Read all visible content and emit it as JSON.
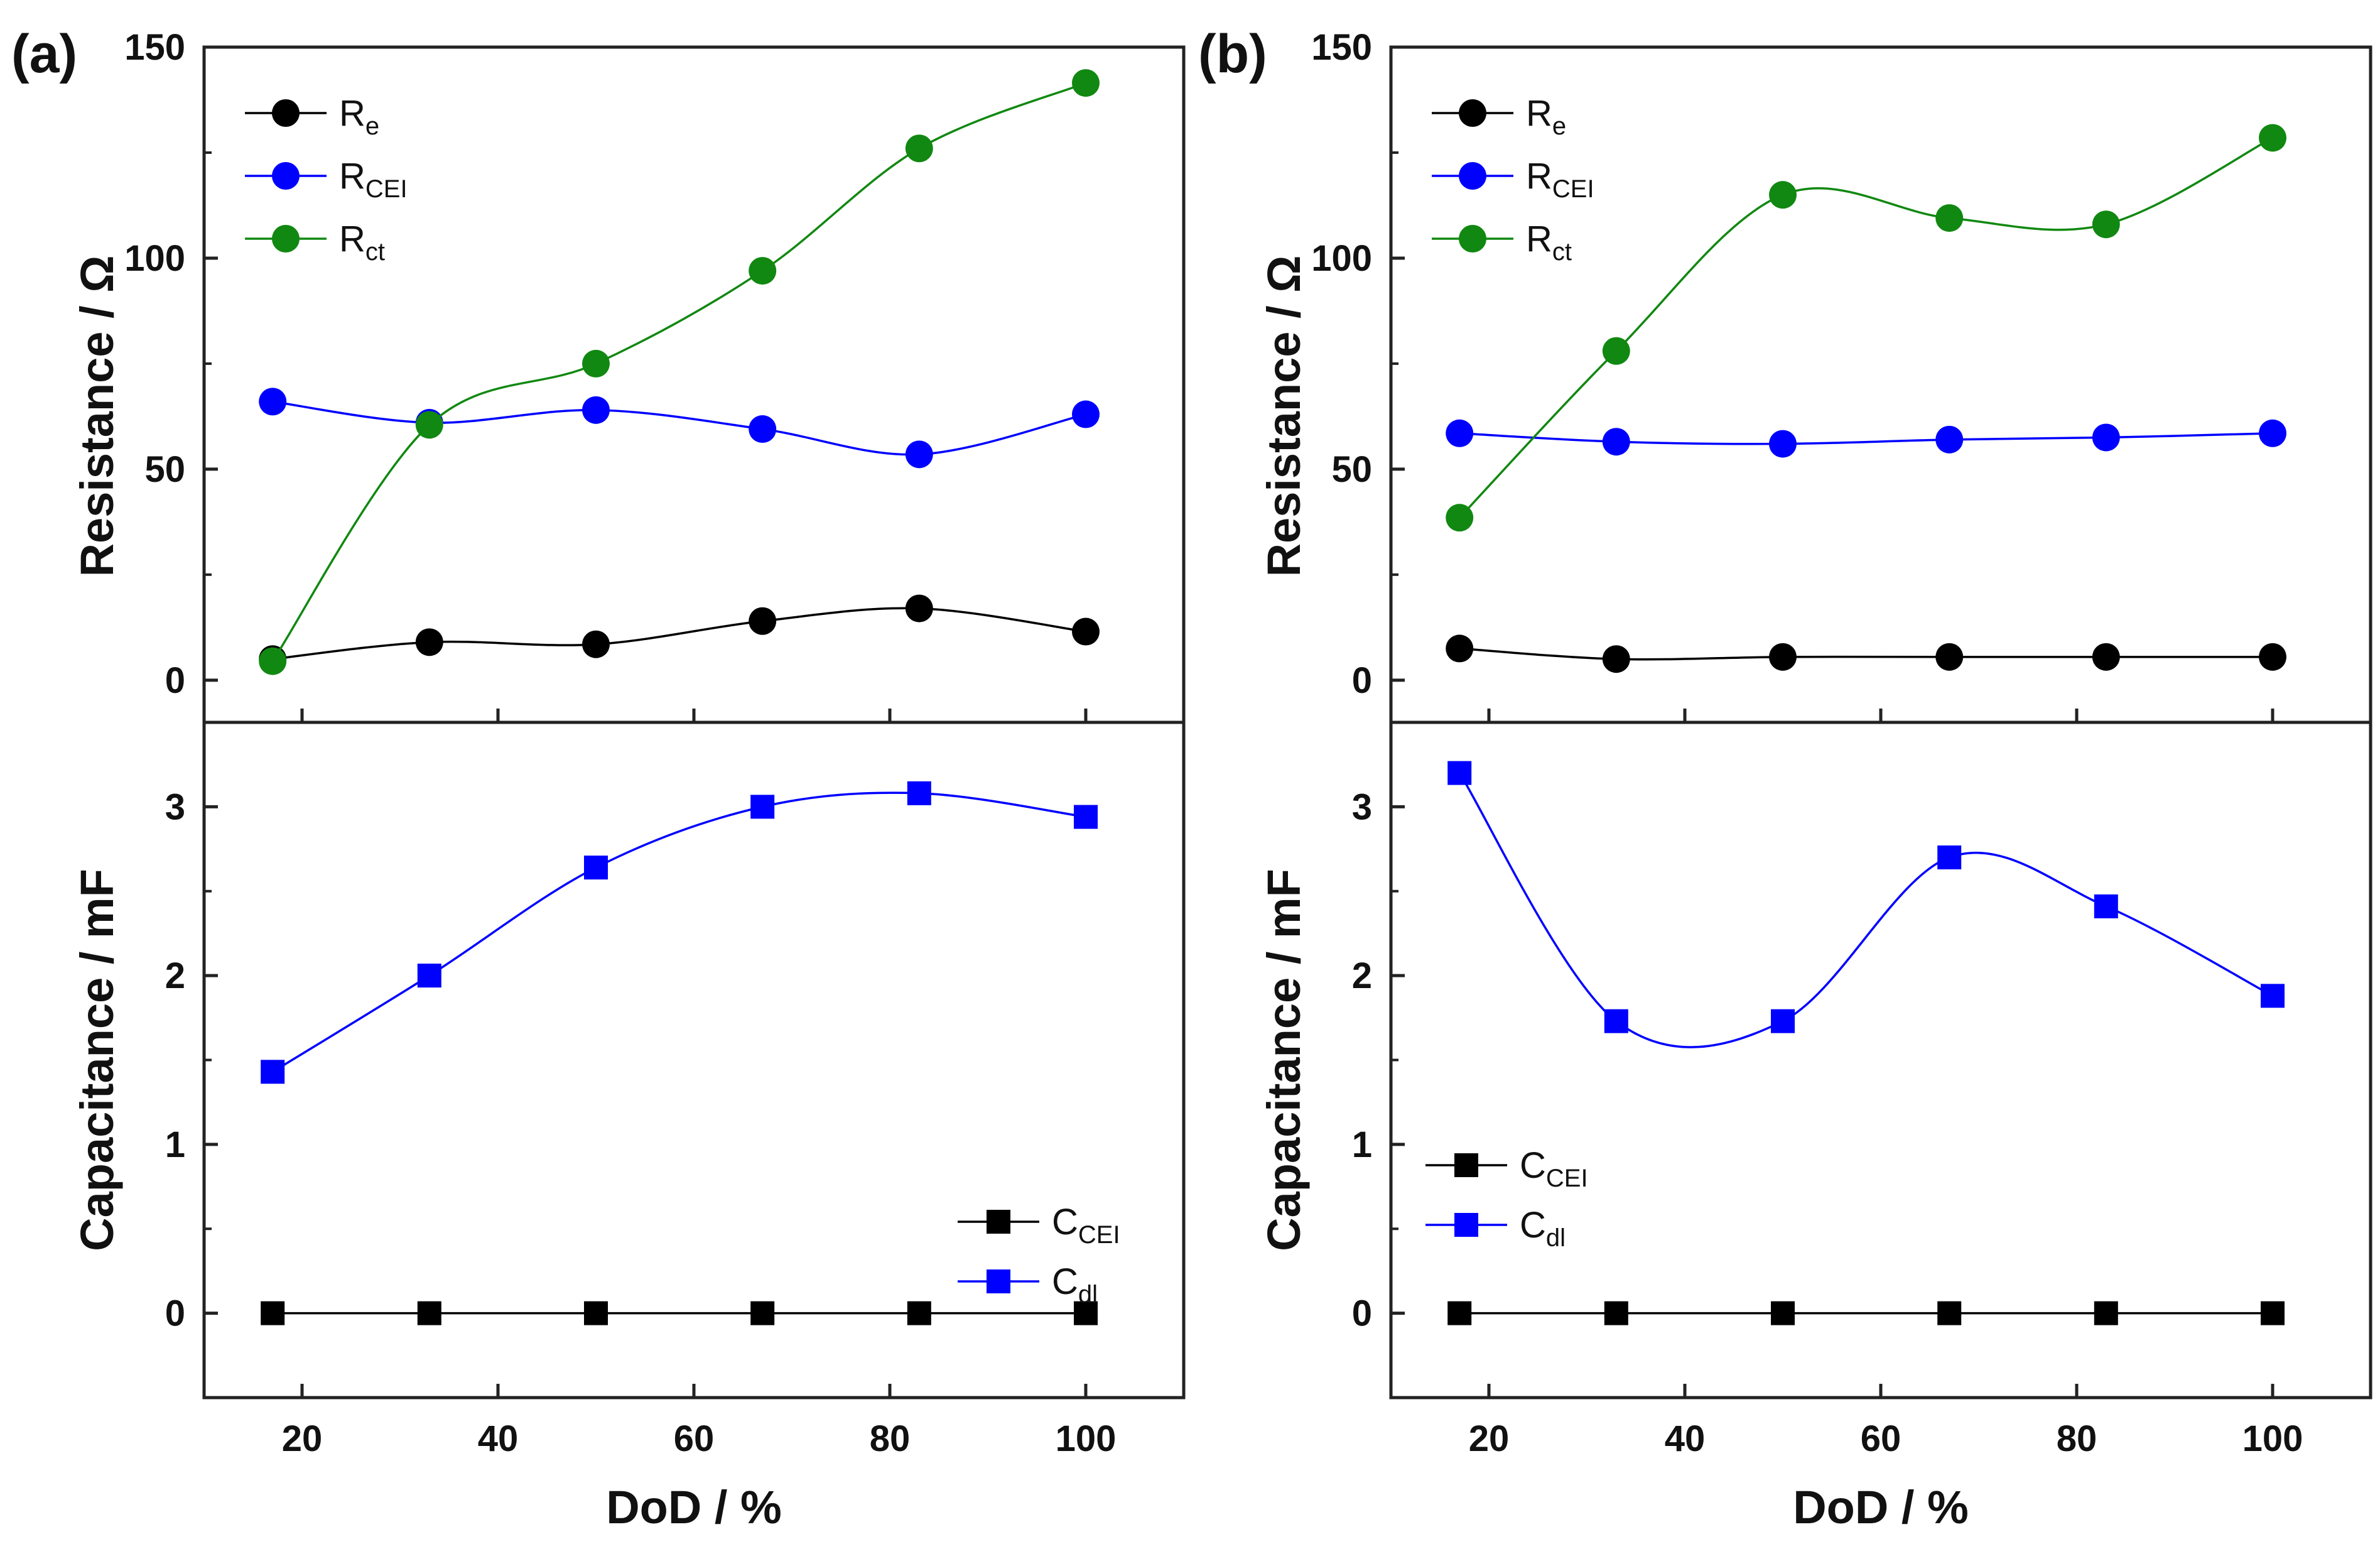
{
  "chart_data": [
    {
      "panel_label": "(a)",
      "type": "line",
      "x": [
        17,
        33,
        50,
        67,
        83,
        100
      ],
      "xlabel": "DoD / %",
      "xticks": [
        20,
        40,
        60,
        80,
        100
      ],
      "xlim": [
        10,
        110
      ],
      "top": {
        "ylabel": "Resistance / Ω",
        "ylim": [
          -10,
          150
        ],
        "yticks": [
          0,
          50,
          100,
          150
        ],
        "legend_position": "top-left",
        "series": [
          {
            "name": "R",
            "sub": "e",
            "color": "#000000",
            "marker": "circle",
            "values": [
              5,
              9,
              8.5,
              14,
              17,
              11.5
            ]
          },
          {
            "name": "R",
            "sub": "CEI",
            "color": "#0000ff",
            "marker": "circle",
            "values": [
              66,
              61,
              64,
              59.5,
              53.5,
              63
            ]
          },
          {
            "name": "R",
            "sub": "ct",
            "color": "#118811",
            "marker": "circle",
            "values": [
              4.5,
              60.5,
              75,
              97,
              126,
              141.5
            ]
          }
        ]
      },
      "bottom": {
        "ylabel": "Capacitance / mF",
        "ylim": [
          -0.5,
          3.5
        ],
        "yticks": [
          0,
          1,
          2,
          3
        ],
        "legend_position": "bottom-right",
        "series": [
          {
            "name": "C",
            "sub": "CEI",
            "color": "#000000",
            "marker": "square",
            "values": [
              0,
              0,
              0,
              0,
              0,
              0
            ]
          },
          {
            "name": "C",
            "sub": "dl",
            "color": "#0000ff",
            "marker": "square",
            "values": [
              1.43,
              2.0,
              2.64,
              3.0,
              3.08,
              2.94
            ]
          }
        ]
      }
    },
    {
      "panel_label": "(b)",
      "type": "line",
      "x": [
        17,
        33,
        50,
        67,
        83,
        100
      ],
      "xlabel": "DoD / %",
      "xticks": [
        20,
        40,
        60,
        80,
        100
      ],
      "xlim": [
        10,
        110
      ],
      "top": {
        "ylabel": "Resistance / Ω",
        "ylim": [
          -10,
          150
        ],
        "yticks": [
          0,
          50,
          100,
          150
        ],
        "legend_position": "top-left",
        "series": [
          {
            "name": "R",
            "sub": "e",
            "color": "#000000",
            "marker": "circle",
            "values": [
              7.5,
              5,
              5.5,
              5.5,
              5.5,
              5.5
            ]
          },
          {
            "name": "R",
            "sub": "CEI",
            "color": "#0000ff",
            "marker": "circle",
            "values": [
              58.5,
              56.5,
              56,
              57,
              57.5,
              58.5
            ]
          },
          {
            "name": "R",
            "sub": "ct",
            "color": "#118811",
            "marker": "circle",
            "values": [
              38.5,
              78,
              115,
              109.5,
              108,
              128.5
            ]
          }
        ]
      },
      "bottom": {
        "ylabel": "Capacitance / mF",
        "ylim": [
          -0.5,
          3.5
        ],
        "yticks": [
          0,
          1,
          2,
          3
        ],
        "legend_position": "bottom-left",
        "series": [
          {
            "name": "C",
            "sub": "CEI",
            "color": "#000000",
            "marker": "square",
            "values": [
              0,
              0,
              0,
              0,
              0,
              0
            ]
          },
          {
            "name": "C",
            "sub": "dl",
            "color": "#0000ff",
            "marker": "square",
            "values": [
              3.2,
              1.73,
              1.73,
              2.7,
              2.41,
              1.88
            ]
          }
        ]
      }
    }
  ]
}
